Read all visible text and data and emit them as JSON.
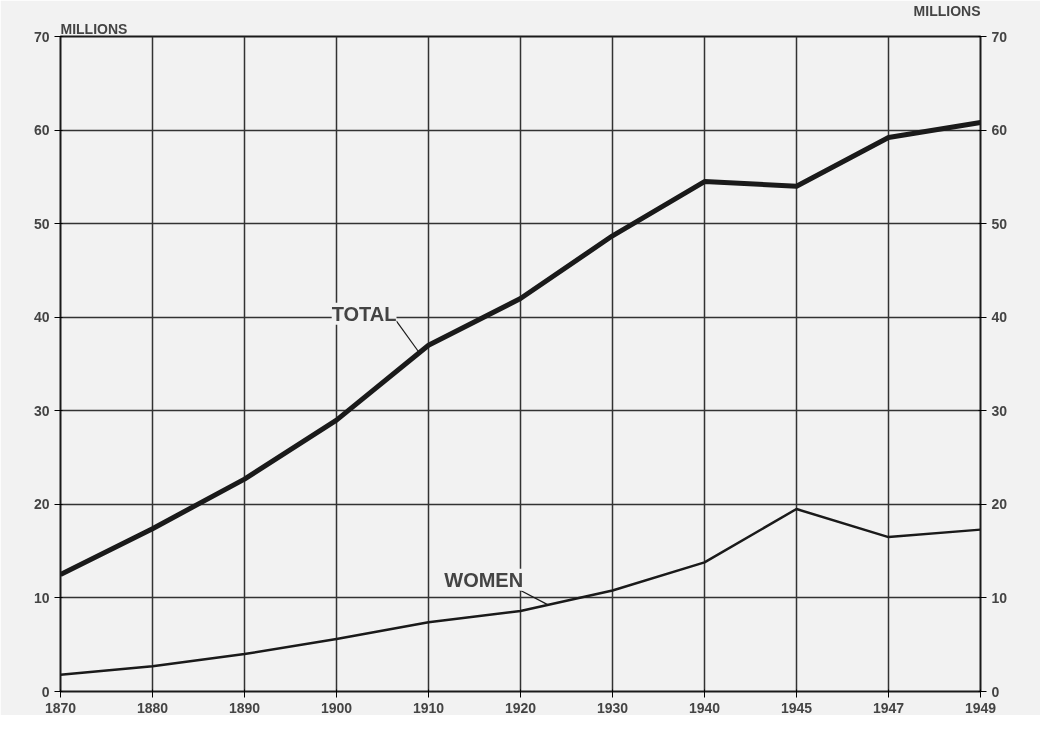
{
  "chart_data": {
    "type": "line",
    "ylabel": "MILLIONS",
    "y2label": "MILLIONS",
    "categories": [
      "1870",
      "1880",
      "1890",
      "1900",
      "1910",
      "1920",
      "1930",
      "1940",
      "1945",
      "1947",
      "1949"
    ],
    "series": [
      {
        "name": "TOTAL",
        "color": "#1a1a1a",
        "values": [
          12.5,
          17.4,
          22.7,
          29,
          37,
          42,
          48.7,
          54.5,
          54,
          59.2,
          60.8
        ]
      },
      {
        "name": "WOMEN",
        "color": "#1a1a1a",
        "values": [
          1.8,
          2.7,
          4,
          5.6,
          7.4,
          8.6,
          10.8,
          13.8,
          19.5,
          16.5,
          17.3
        ]
      }
    ],
    "ylim": [
      0,
      70
    ],
    "yticks": [
      0,
      10,
      20,
      30,
      40,
      50,
      60,
      70
    ],
    "y2lim": [
      0,
      70
    ],
    "y2ticks": [
      0,
      10,
      20,
      30,
      40,
      50,
      60,
      70
    ],
    "grid": true,
    "marker": "none",
    "line_style": "solid"
  }
}
